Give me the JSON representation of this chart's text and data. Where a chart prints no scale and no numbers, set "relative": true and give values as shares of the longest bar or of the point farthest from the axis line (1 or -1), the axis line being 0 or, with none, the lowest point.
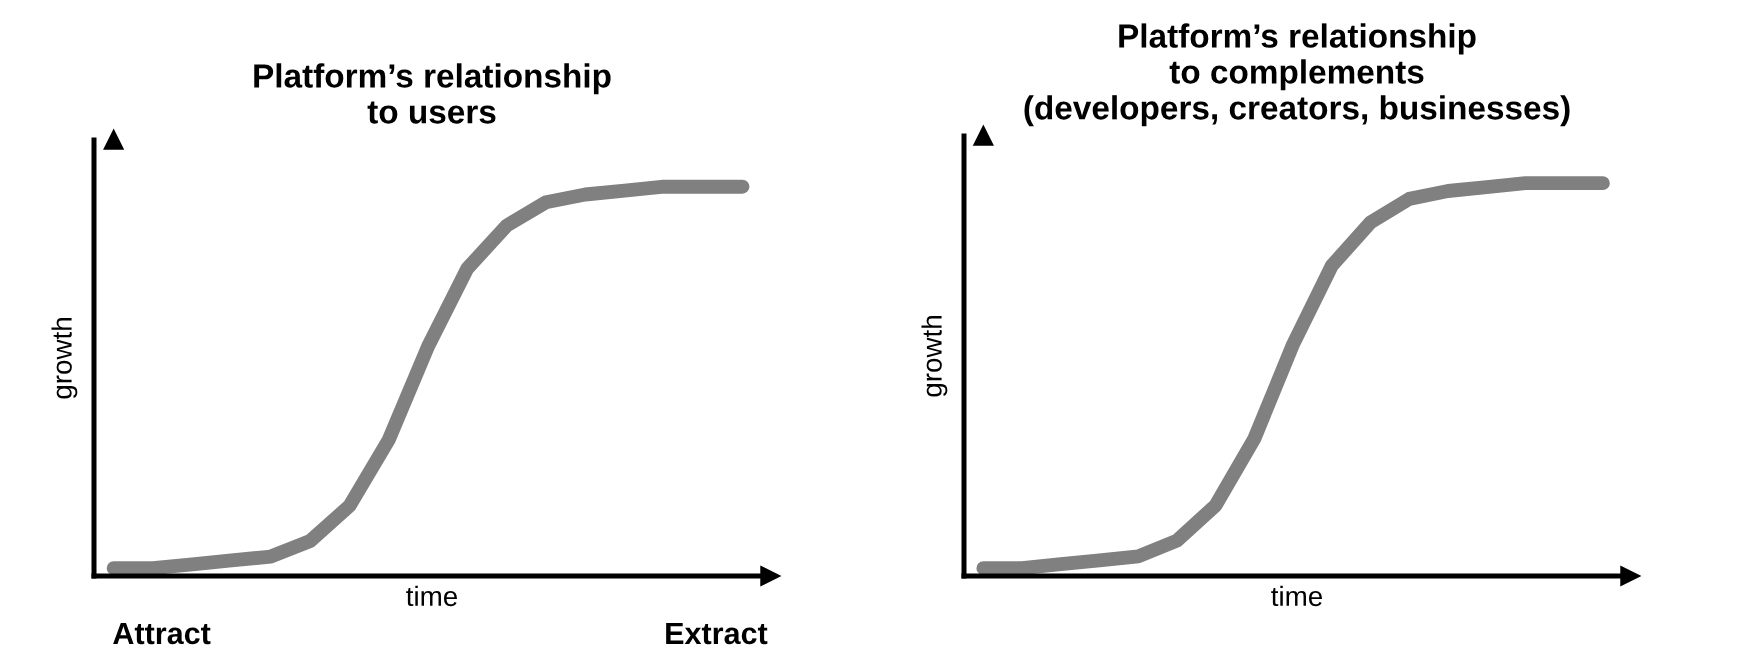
{
  "chart_data": [
    {
      "type": "line",
      "title": "Platform’s relationship\nto users",
      "xlabel": "time",
      "ylabel": "growth",
      "relative": true,
      "categories": [
        null,
        null,
        null,
        null,
        null,
        null,
        null,
        null,
        null,
        null,
        null,
        null,
        null,
        null,
        null,
        null,
        null
      ],
      "series": [
        {
          "color": "#808080",
          "values": [
            0.02,
            0.02,
            0.03,
            0.04,
            0.05,
            0.09,
            0.18,
            0.35,
            0.59,
            0.79,
            0.9,
            0.96,
            0.98,
            0.99,
            1.0,
            1.0,
            1
          ]
        }
      ],
      "annotations": [
        "Attract",
        "Extract"
      ]
    },
    {
      "type": "line",
      "title": "Platform’s relationship\nto complements\n(developers, creators, businesses)",
      "xlabel": "time",
      "ylabel": "growth",
      "relative": true,
      "categories": [
        null,
        null,
        null,
        null,
        null,
        null,
        null,
        null,
        null,
        null,
        null,
        null,
        null,
        null,
        null,
        null,
        null
      ],
      "series": [
        {
          "color": "#808080",
          "values": [
            0.02,
            0.02,
            0.03,
            0.04,
            0.05,
            0.09,
            0.18,
            0.35,
            0.59,
            0.79,
            0.9,
            0.96,
            0.98,
            0.99,
            1.0,
            1.0,
            1
          ]
        }
      ]
    }
  ]
}
